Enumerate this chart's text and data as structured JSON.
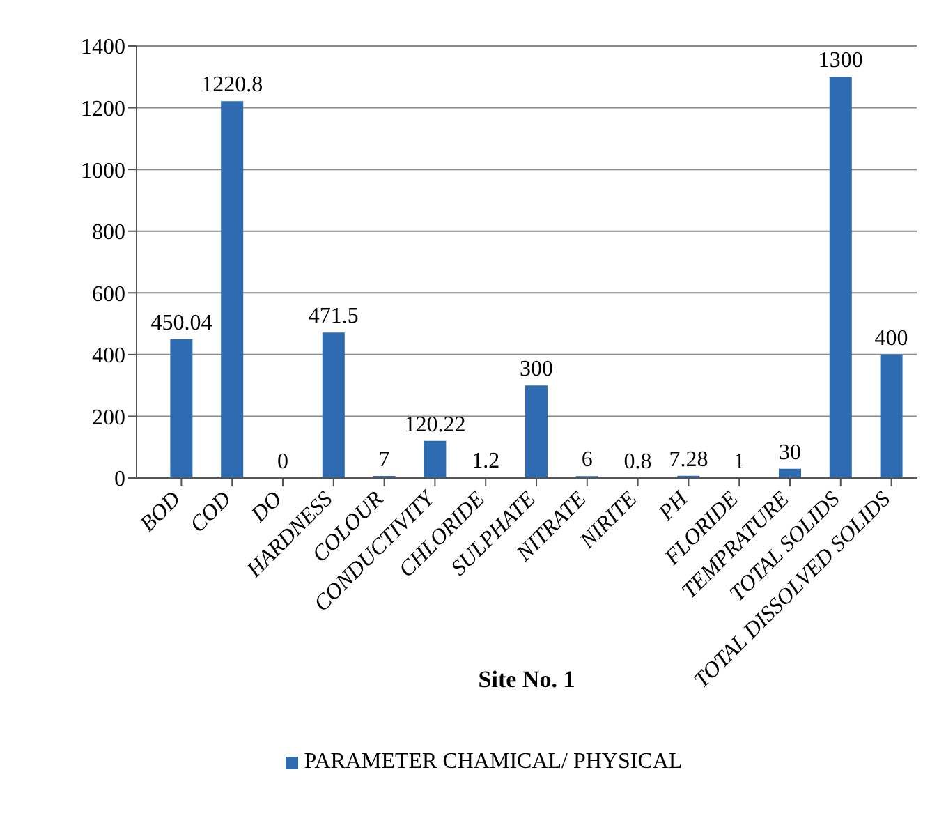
{
  "chart_data": {
    "type": "bar",
    "xlabel": "Site No. 1",
    "categories": [
      "BOD",
      "COD",
      "DO",
      "HARDNESS",
      "COLOUR",
      "CONDUCTIVITY",
      "CHLORIDE",
      "SULPHATE",
      "NITRATE",
      "NIRITE",
      "PH",
      "FLORIDE",
      "TEMPRATURE",
      "TOTAL SOLIDS",
      "TOTAL DISSOLVED SOLIDS"
    ],
    "series": [
      {
        "name": "PARAMETER CHAMICAL/ PHYSICAL",
        "color": "#2e6bb0",
        "values": [
          450.04,
          1220.8,
          0,
          471.5,
          7,
          120.22,
          1.2,
          300,
          6,
          0.8,
          7.28,
          1,
          30,
          1300,
          400
        ]
      }
    ],
    "ylim": [
      0,
      1400
    ],
    "yticks": [
      0,
      200,
      400,
      600,
      800,
      1000,
      1200,
      1400
    ],
    "grid": "y",
    "legend": "bottom",
    "data_labels": true
  }
}
